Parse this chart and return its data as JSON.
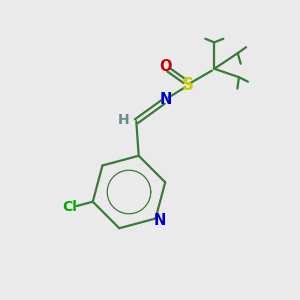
{
  "background_color": "#eaeaea",
  "bond_color": "#3a7a3a",
  "N_color": "#0000cc",
  "O_color": "#cc0000",
  "S_color": "#cccc00",
  "Cl_color": "#00aa00",
  "H_color": "#6a8a8a",
  "figsize": [
    3.0,
    3.0
  ],
  "dpi": 100,
  "xlim": [
    0,
    10
  ],
  "ylim": [
    0,
    10
  ]
}
